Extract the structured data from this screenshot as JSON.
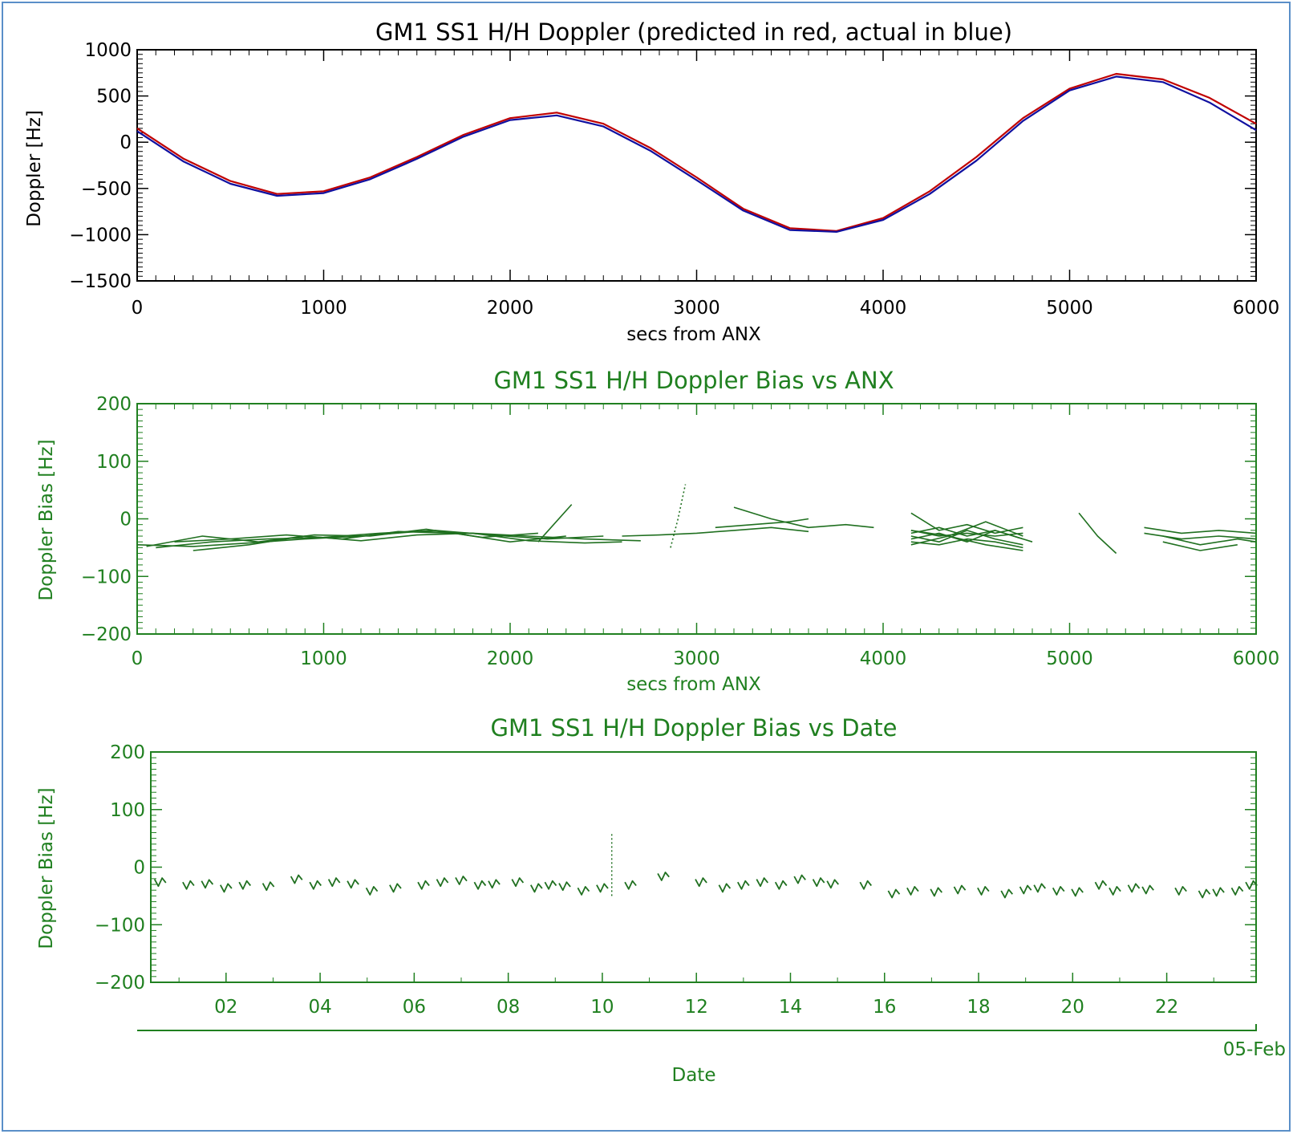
{
  "chart_data": [
    {
      "id": "doppler",
      "type": "line",
      "title": "GM1 SS1 H/H Doppler (predicted in red, actual in blue)",
      "xlabel": "secs from ANX",
      "ylabel": "Doppler [Hz]",
      "xlim": [
        0,
        6000
      ],
      "ylim": [
        -1500,
        1000
      ],
      "x_ticks": [
        0,
        1000,
        2000,
        3000,
        4000,
        5000,
        6000
      ],
      "y_ticks": [
        1000,
        500,
        0,
        -500,
        -1000,
        -1500
      ],
      "grid": false,
      "legend": "none",
      "colors": {
        "axis": "#000000",
        "predicted": "#c00000",
        "actual": "#1010a0",
        "passes": "#000000"
      },
      "series": [
        {
          "name": "predicted",
          "color": "#c00000",
          "x": [
            0,
            250,
            500,
            750,
            1000,
            1250,
            1500,
            1750,
            2000,
            2250,
            2500,
            2750,
            3000,
            3250,
            3500,
            3750,
            4000,
            4250,
            4500,
            4750,
            5000,
            5250,
            5500,
            5750,
            6000
          ],
          "y": [
            150,
            -180,
            -420,
            -560,
            -530,
            -380,
            -160,
            80,
            260,
            320,
            200,
            -60,
            -380,
            -720,
            -930,
            -960,
            -820,
            -530,
            -160,
            260,
            580,
            740,
            680,
            480,
            200
          ]
        },
        {
          "name": "actual",
          "color": "#1010a0",
          "x": [
            0,
            250,
            500,
            750,
            1000,
            1250,
            1500,
            1750,
            2000,
            2250,
            2500,
            2750,
            3000,
            3250,
            3500,
            3750,
            4000,
            4250,
            4500,
            4750,
            5000,
            5250,
            5500,
            5750,
            6000
          ],
          "y": [
            120,
            -210,
            -450,
            -580,
            -550,
            -400,
            -180,
            60,
            240,
            290,
            170,
            -90,
            -410,
            -740,
            -950,
            -970,
            -840,
            -560,
            -200,
            230,
            560,
            710,
            650,
            430,
            130
          ]
        }
      ]
    },
    {
      "id": "bias_anx",
      "type": "line",
      "title": "GM1 SS1 H/H Doppler Bias vs ANX",
      "xlabel": "secs from ANX",
      "ylabel": "Doppler Bias [Hz]",
      "xlim": [
        0,
        6000
      ],
      "ylim": [
        -200,
        200
      ],
      "x_ticks": [
        0,
        1000,
        2000,
        3000,
        4000,
        5000,
        6000
      ],
      "y_ticks": [
        200,
        100,
        0,
        -100,
        -200
      ],
      "grid": false,
      "legend": "none",
      "colors": {
        "axis": "#208020",
        "trace": "#207020"
      },
      "series": [
        {
          "x": [
            0,
            300,
            600,
            900,
            1200,
            1500,
            1800,
            2100,
            2400,
            2700
          ],
          "y": [
            -45,
            -48,
            -42,
            -35,
            -30,
            -22,
            -25,
            -30,
            -35,
            -38
          ]
        },
        {
          "x": [
            100,
            400,
            700,
            1000,
            1300,
            1600,
            1900,
            2200,
            2500
          ],
          "y": [
            -50,
            -40,
            -35,
            -32,
            -25,
            -20,
            -28,
            -35,
            -30
          ]
        },
        {
          "x": [
            200,
            500,
            800,
            1100,
            1400,
            1700,
            2000,
            2300
          ],
          "y": [
            -40,
            -35,
            -28,
            -35,
            -22,
            -25,
            -40,
            -30
          ]
        },
        {
          "x": [
            50,
            350,
            650,
            950,
            1250,
            1550,
            1850,
            2150
          ],
          "y": [
            -48,
            -30,
            -40,
            -28,
            -30,
            -18,
            -32,
            -25
          ]
        },
        {
          "x": [
            300,
            600,
            900,
            1200,
            1500,
            1800,
            2100,
            2400,
            2600
          ],
          "y": [
            -55,
            -45,
            -30,
            -38,
            -28,
            -25,
            -38,
            -42,
            -40
          ]
        },
        {
          "x": [
            2600,
            2800,
            3000,
            3200,
            3400,
            3600
          ],
          "y": [
            -30,
            -28,
            -25,
            -20,
            -15,
            -22
          ]
        },
        {
          "x": [
            3200,
            3400,
            3600,
            3800,
            3950
          ],
          "y": [
            20,
            0,
            -15,
            -10,
            -15
          ]
        },
        {
          "x": [
            3100,
            3300,
            3500,
            3600
          ],
          "y": [
            -15,
            -10,
            -5,
            0
          ]
        },
        {
          "x": [
            2150,
            2330
          ],
          "y": [
            -40,
            25
          ]
        },
        {
          "x": [
            4150,
            4300,
            4450,
            4600,
            4750
          ],
          "y": [
            -20,
            -30,
            -25,
            -30,
            -25
          ]
        },
        {
          "x": [
            4150,
            4300,
            4450,
            4600,
            4750
          ],
          "y": [
            -35,
            -25,
            -40,
            -20,
            -35
          ]
        },
        {
          "x": [
            4150,
            4300,
            4450,
            4600,
            4750
          ],
          "y": [
            -30,
            -40,
            -20,
            -35,
            -45
          ]
        },
        {
          "x": [
            4150,
            4300,
            4450,
            4600,
            4750
          ],
          "y": [
            10,
            -20,
            -10,
            -25,
            -15
          ]
        },
        {
          "x": [
            4150,
            4300,
            4450,
            4600,
            4750
          ],
          "y": [
            -40,
            -45,
            -35,
            -40,
            -50
          ]
        },
        {
          "x": [
            4150,
            4300,
            4450,
            4600,
            4800
          ],
          "y": [
            -25,
            -15,
            -30,
            -20,
            -40
          ]
        },
        {
          "x": [
            4150,
            4350,
            4550,
            4750
          ],
          "y": [
            -20,
            -30,
            -5,
            -30
          ]
        },
        {
          "x": [
            4150,
            4350,
            4550,
            4750
          ],
          "y": [
            -45,
            -30,
            -45,
            -55
          ]
        },
        {
          "x": [
            5050,
            5150,
            5250
          ],
          "y": [
            10,
            -30,
            -60
          ]
        },
        {
          "x": [
            5400,
            5600,
            5800,
            6000
          ],
          "y": [
            -15,
            -25,
            -20,
            -25
          ]
        },
        {
          "x": [
            5400,
            5600,
            5800,
            6000
          ],
          "y": [
            -25,
            -35,
            -30,
            -35
          ]
        },
        {
          "x": [
            5500,
            5700,
            5900,
            6000
          ],
          "y": [
            -30,
            -45,
            -35,
            -40
          ]
        },
        {
          "x": [
            5500,
            5700,
            5900
          ],
          "y": [
            -40,
            -55,
            -45
          ]
        }
      ],
      "dotted": {
        "x": [
          2860,
          2900,
          2940
        ],
        "y": [
          -50,
          0,
          60
        ]
      }
    },
    {
      "id": "bias_date",
      "type": "line",
      "title": "GM1 SS1 H/H Doppler Bias vs Date",
      "xlabel": "Date",
      "ylabel": "Doppler Bias [Hz]",
      "xlim": [
        0.4,
        23.9
      ],
      "ylim": [
        -200,
        200
      ],
      "x_ticks": [
        "02",
        "04",
        "06",
        "08",
        "10",
        "12",
        "14",
        "16",
        "18",
        "20",
        "22"
      ],
      "y_ticks": [
        200,
        100,
        0,
        -100,
        -200
      ],
      "secondary_axis_label": "05-Feb",
      "grid": false,
      "legend": "none",
      "colors": {
        "axis": "#208020",
        "trace": "#207020"
      },
      "passes_x": [
        0.6,
        1.2,
        1.6,
        2.0,
        2.4,
        2.9,
        3.5,
        3.9,
        4.3,
        4.7,
        5.1,
        5.6,
        6.2,
        6.6,
        7.0,
        7.4,
        7.7,
        8.2,
        8.6,
        8.9,
        9.2,
        9.6,
        10.0,
        10.6,
        11.3,
        12.1,
        12.6,
        13.0,
        13.4,
        13.8,
        14.2,
        14.6,
        14.9,
        15.6,
        16.2,
        16.6,
        17.1,
        17.6,
        18.1,
        18.6,
        19.0,
        19.3,
        19.7,
        20.1,
        20.6,
        20.9,
        21.3,
        21.6,
        22.3,
        22.8,
        23.1,
        23.5,
        23.8
      ],
      "passes_y": [
        -25,
        -30,
        -28,
        -35,
        -30,
        -32,
        -20,
        -30,
        -25,
        -28,
        -40,
        -35,
        -30,
        -25,
        -22,
        -30,
        -28,
        -25,
        -35,
        -30,
        -32,
        -40,
        -35,
        -30,
        -15,
        -25,
        -35,
        -30,
        -25,
        -30,
        -20,
        -25,
        -28,
        -30,
        -45,
        -40,
        -42,
        -38,
        -40,
        -45,
        -38,
        -35,
        -40,
        -42,
        -30,
        -40,
        -35,
        -38,
        -40,
        -45,
        -42,
        -40,
        -30
      ],
      "dotted": {
        "x": [
          10.2,
          10.2
        ],
        "y": [
          -50,
          60
        ]
      }
    }
  ]
}
